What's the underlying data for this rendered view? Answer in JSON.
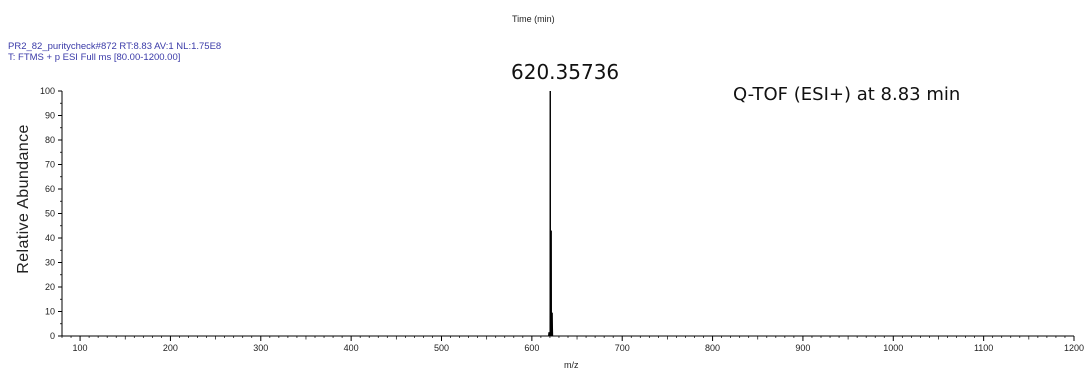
{
  "chart_data": {
    "type": "line",
    "title": "Time (min)",
    "header_line_1": "PR2_82_puritycheck#872 RT:8.83 AV:1 NL:1.75E8",
    "header_line_2": "T: FTMS + p ESI Full ms [80.00-1200.00]",
    "annotation": "Q-TOF (ESI+) at 8.83 min",
    "peak_label": "620.35736",
    "xlabel": "m/z",
    "ylabel": "Relative  Abundance",
    "xlim": [
      90,
      1200
    ],
    "ylim": [
      0,
      100
    ],
    "x_ticks": [
      100,
      200,
      300,
      400,
      500,
      600,
      700,
      800,
      900,
      1000,
      1100,
      1200
    ],
    "y_ticks": [
      0,
      10,
      20,
      30,
      40,
      50,
      60,
      70,
      80,
      90,
      100
    ],
    "series": [
      {
        "x": [
          90,
          618.5,
          619.0,
          619.4,
          619.8,
          620.1,
          620.36,
          620.6,
          621.0,
          621.36,
          621.7,
          622.1,
          622.4,
          623.0,
          1200
        ],
        "y": [
          0,
          0,
          1.5,
          0,
          0,
          0,
          100,
          0,
          0,
          43,
          0,
          0,
          9.5,
          0,
          0
        ]
      }
    ]
  }
}
